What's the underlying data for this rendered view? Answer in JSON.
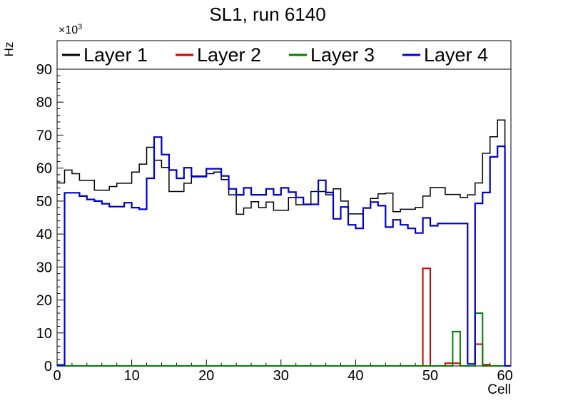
{
  "title": "SL1, run 6140",
  "y_axis_multiplier": {
    "base": "×10",
    "exponent": "3"
  },
  "chart_data": {
    "type": "line",
    "style": "step-histogram",
    "title": "SL1, run 6140",
    "xlabel": "Cell",
    "ylabel": "Hz",
    "y_unit_multiplier": "×10³",
    "xlim": [
      0,
      60.8
    ],
    "ylim": [
      0,
      98.65
    ],
    "x_ticks": [
      0,
      10,
      20,
      30,
      40,
      50,
      60
    ],
    "y_ticks": [
      0,
      10,
      20,
      30,
      40,
      50,
      60,
      70,
      80,
      90
    ],
    "x_minor_step": 2,
    "y_minor_step": 2,
    "grid": false,
    "legend_position": "top",
    "bin_start": 0,
    "bin_width": 1,
    "series": [
      {
        "name": "Layer 1",
        "color": "#000000",
        "line_width": 1.5,
        "values": [
          55.5,
          59.4,
          58.3,
          56.3,
          56.3,
          53.3,
          53.3,
          54.4,
          55.4,
          55.4,
          58.8,
          61.2,
          66.3,
          62.4,
          60.2,
          52.9,
          52.9,
          55.4,
          57.6,
          57.6,
          58.3,
          58.8,
          56.5,
          51.9,
          46.0,
          47.9,
          49.8,
          48.0,
          49.7,
          47.2,
          47.2,
          51.1,
          48.9,
          48.9,
          52.9,
          52.9,
          51.9,
          53.7,
          50.0,
          46.1,
          46.1,
          47.9,
          50.8,
          52.2,
          52.4,
          46.8,
          47.5,
          47.5,
          48.1,
          51.5,
          54.1,
          54.1,
          52.0,
          52.0,
          51.1,
          51.9,
          55.5,
          64.5,
          69.5,
          74.6
        ]
      },
      {
        "name": "Layer 2",
        "color": "#cc0000",
        "line_width": 2,
        "values": [
          0,
          0,
          0,
          0,
          0,
          0,
          0,
          0,
          0,
          0,
          0,
          0,
          0,
          0,
          0,
          0,
          0,
          0,
          0,
          0,
          0,
          0,
          0,
          0,
          0,
          0,
          0,
          0,
          0,
          0,
          0,
          0,
          0,
          0,
          0,
          0,
          0,
          0,
          0,
          0,
          0,
          0,
          0,
          0,
          0,
          0,
          0,
          0,
          0,
          29.6,
          0,
          0,
          0.8,
          0.8,
          0,
          0,
          6.6,
          0.4,
          0,
          0
        ]
      },
      {
        "name": "Layer 3",
        "color": "#008000",
        "line_width": 2,
        "values": [
          0,
          0,
          0,
          0,
          0,
          0,
          0,
          0,
          0,
          0,
          0,
          0,
          0,
          0,
          0,
          0,
          0,
          0,
          0,
          0,
          0,
          0,
          0,
          0,
          0,
          0,
          0,
          0,
          0,
          0,
          0,
          0,
          0,
          0,
          0,
          0,
          0,
          0,
          0,
          0,
          0,
          0,
          0,
          0,
          0,
          0,
          0,
          0,
          0,
          0,
          0,
          0,
          0,
          10.4,
          0,
          0,
          16.0,
          0,
          0,
          0
        ]
      },
      {
        "name": "Layer 4",
        "color": "#0000cc",
        "line_width": 2.2,
        "values": [
          0.3,
          52.5,
          52.5,
          51.5,
          50.5,
          50.0,
          49.2,
          48.3,
          48.3,
          49.5,
          48.0,
          47.5,
          56.9,
          69.4,
          64.1,
          59.4,
          56.9,
          60.1,
          57.4,
          57.4,
          59.8,
          59.8,
          57.6,
          53.7,
          51.9,
          54.0,
          51.9,
          51.9,
          53.7,
          51.9,
          54.0,
          52.7,
          51.1,
          49.0,
          49.0,
          56.3,
          52.6,
          44.6,
          48.2,
          42.8,
          41.7,
          47.9,
          49.7,
          48.6,
          42.1,
          44.3,
          42.8,
          41.7,
          40.3,
          44.9,
          42.5,
          43.2,
          43.2,
          43.2,
          43.2,
          0.6,
          49.3,
          52.6,
          63.4,
          66.6
        ]
      }
    ]
  }
}
